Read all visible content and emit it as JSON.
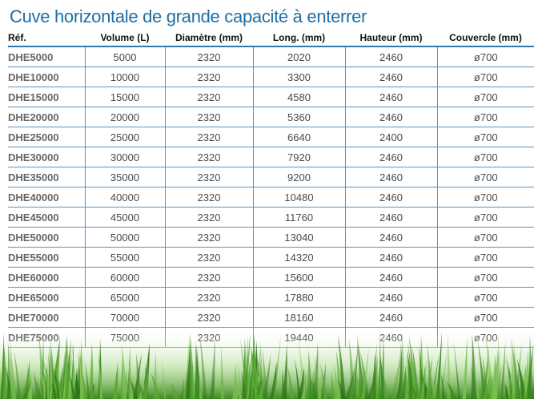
{
  "title": "Cuve horizontale de grande capacité à enterrer",
  "columns": [
    "Réf.",
    "Volume (L)",
    "Diamètre (mm)",
    "Long. (mm)",
    "Hauteur (mm)",
    "Couvercle (mm)"
  ],
  "rows": [
    [
      "DHE5000",
      "5000",
      "2320",
      "2020",
      "2460",
      "ø700"
    ],
    [
      "DHE10000",
      "10000",
      "2320",
      "3300",
      "2460",
      "ø700"
    ],
    [
      "DHE15000",
      "15000",
      "2320",
      "4580",
      "2460",
      "ø700"
    ],
    [
      "DHE20000",
      "20000",
      "2320",
      "5360",
      "2460",
      "ø700"
    ],
    [
      "DHE25000",
      "25000",
      "2320",
      "6640",
      "2400",
      "ø700"
    ],
    [
      "DHE30000",
      "30000",
      "2320",
      "7920",
      "2460",
      "ø700"
    ],
    [
      "DHE35000",
      "35000",
      "2320",
      "9200",
      "2460",
      "ø700"
    ],
    [
      "DHE40000",
      "40000",
      "2320",
      "10480",
      "2460",
      "ø700"
    ],
    [
      "DHE45000",
      "45000",
      "2320",
      "11760",
      "2460",
      "ø700"
    ],
    [
      "DHE50000",
      "50000",
      "2320",
      "13040",
      "2460",
      "ø700"
    ],
    [
      "DHE55000",
      "55000",
      "2320",
      "14320",
      "2460",
      "ø700"
    ],
    [
      "DHE60000",
      "60000",
      "2320",
      "15600",
      "2460",
      "ø700"
    ],
    [
      "DHE65000",
      "65000",
      "2320",
      "17880",
      "2460",
      "ø700"
    ],
    [
      "DHE70000",
      "70000",
      "2320",
      "18160",
      "2460",
      "ø700"
    ],
    [
      "DHE75000",
      "75000",
      "2320",
      "19440",
      "2460",
      "ø700"
    ]
  ],
  "colors": {
    "title": "#1d6ea6",
    "rule": "#5b93c2",
    "grass": "#4f9a2c"
  }
}
